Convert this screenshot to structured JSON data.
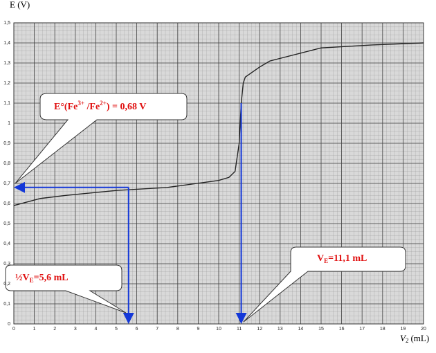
{
  "chart_data": {
    "type": "line",
    "y_label": "E (V)",
    "x_label": {
      "text": "V",
      "sub": "2",
      "unit": "(mL)"
    },
    "x": [
      0,
      1.3,
      2.5,
      5,
      7.5,
      10,
      10.5,
      10.8,
      11,
      11.1,
      11.2,
      11.3,
      12,
      12.5,
      15,
      17.5,
      20
    ],
    "series": [
      {
        "color": "#222222",
        "values": [
          0.59,
          0.625,
          0.64,
          0.665,
          0.68,
          0.715,
          0.73,
          0.76,
          0.9,
          1.1,
          1.2,
          1.23,
          1.28,
          1.31,
          1.375,
          1.39,
          1.4
        ]
      }
    ],
    "xlim": [
      0,
      20
    ],
    "ylim": [
      0,
      1.5
    ],
    "xticks": [
      0,
      1,
      2,
      3,
      4,
      5,
      6,
      7,
      8,
      9,
      10,
      11,
      12,
      13,
      14,
      15,
      16,
      17,
      18,
      19,
      20
    ],
    "yticks": [
      0,
      {
        "value": 0.1,
        "label": "0,1"
      },
      {
        "value": 0.2,
        "label": "0,2"
      },
      {
        "value": 0.3,
        "label": "0,3"
      },
      {
        "value": 0.4,
        "label": "0,4"
      },
      {
        "value": 0.5,
        "label": "0,5"
      },
      {
        "value": 0.6,
        "label": "0,6"
      },
      {
        "value": 0.7,
        "label": "0,7"
      },
      {
        "value": 0.8,
        "label": "0,8"
      },
      {
        "value": 0.9,
        "label": "0,9"
      },
      1,
      {
        "value": 1.1,
        "label": "1,1"
      },
      {
        "value": 1.2,
        "label": "1,2"
      },
      {
        "value": 1.3,
        "label": "1,3"
      },
      {
        "value": 1.4,
        "label": "1,4"
      },
      {
        "value": 1.5,
        "label": "1,5"
      }
    ],
    "grid": true,
    "guide_color": "#1438d8",
    "annotations": [
      {
        "parts": [
          {
            "text": "E°(Fe"
          },
          {
            "text": "3+",
            "style": "sup"
          },
          {
            "text": " /Fe"
          },
          {
            "text": "2+",
            "style": "sup"
          },
          {
            "text": ") = 0,68 V"
          }
        ],
        "y": 0.68
      },
      {
        "parts": [
          {
            "text": "½V"
          },
          {
            "text": "E",
            "style": "sub"
          },
          {
            "text": "=5,6 mL"
          }
        ],
        "x": 5.6
      },
      {
        "parts": [
          {
            "text": "V"
          },
          {
            "text": "E",
            "style": "sub"
          },
          {
            "text": "=11,1 mL"
          }
        ],
        "x": 11.1
      }
    ]
  }
}
